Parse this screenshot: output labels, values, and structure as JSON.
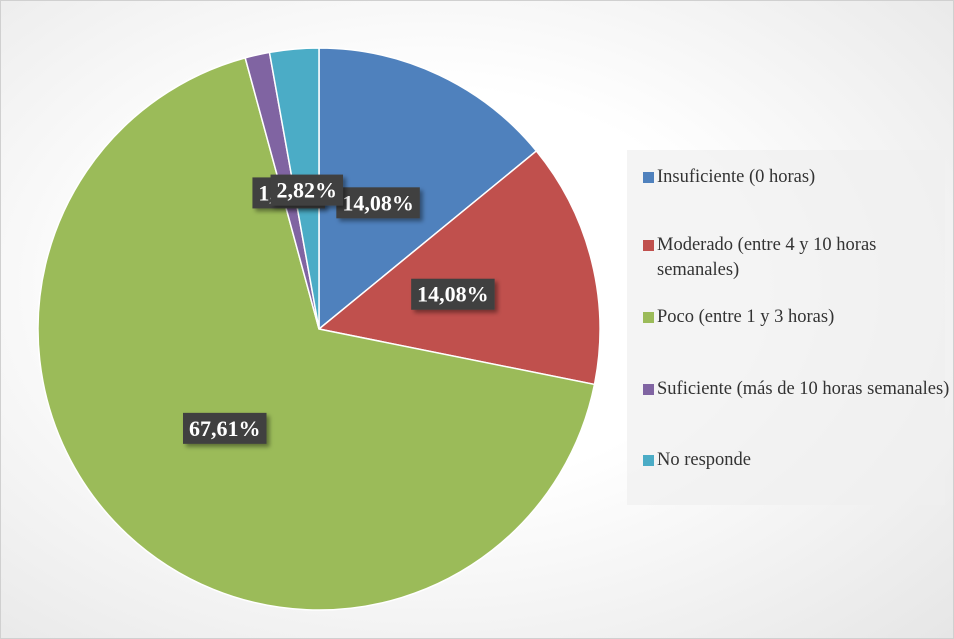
{
  "chart_data": {
    "type": "pie",
    "categories": [
      "Insuficiente (0 horas)",
      "Moderado (entre 4 y 10 horas semanales)",
      "Poco (entre 1 y 3 horas)",
      "Suficiente (más de 10 horas semanales)",
      "No responde"
    ],
    "values": [
      14.08,
      14.08,
      67.61,
      1.41,
      2.82
    ],
    "value_labels": [
      "14,08%",
      "14,08%",
      "67,61%",
      "1,41%",
      "2,82%"
    ],
    "colors": [
      "#4f81bd",
      "#c0504d",
      "#9bbb59",
      "#8064a2",
      "#4bacc6"
    ],
    "legend": "right"
  }
}
